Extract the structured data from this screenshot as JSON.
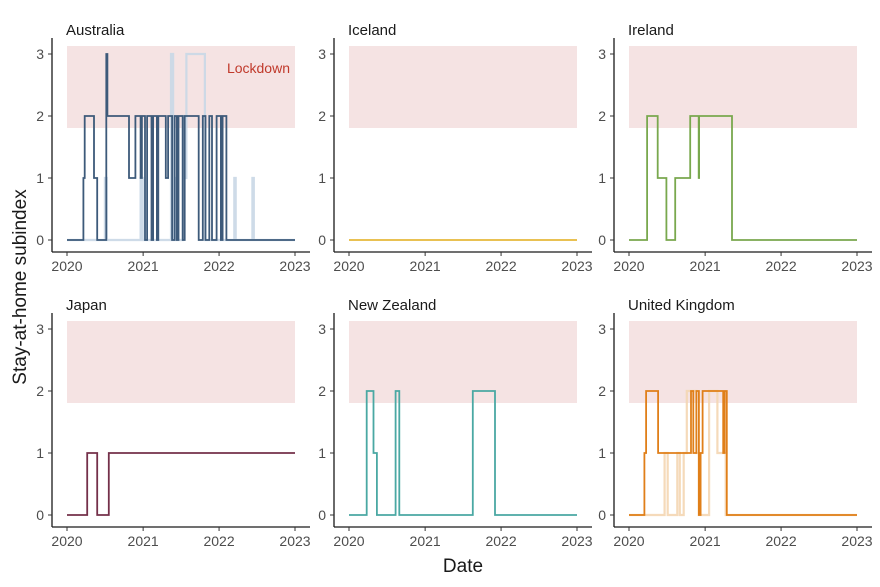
{
  "axis": {
    "xlabel": "Date",
    "ylabel": "Stay-at-home subindex"
  },
  "lockdown": {
    "label": "Lockdown",
    "threshold": 2,
    "label_color": "#c0392b",
    "band_color": "#f5e3e3"
  },
  "chart_data": {
    "type": "line",
    "layout": "facet-grid 2x3",
    "xlim": [
      "2020-01-01",
      "2023-01-01"
    ],
    "xticks": [
      "2020",
      "2021",
      "2022",
      "2023"
    ],
    "ylim": [
      0,
      3
    ],
    "yticks": [
      "0",
      "1",
      "2",
      "3"
    ],
    "grid": false,
    "xlabel": "Date",
    "ylabel": "Stay-at-home subindex",
    "annotation": "Lockdown",
    "panels": [
      {
        "title": "Australia",
        "color": "#3d5a7a",
        "series": [
          {
            "role": "faint",
            "color": "#c9d7e6",
            "steps": [
              [
                "2020-01-01",
                0
              ],
              [
                "2020-07-01",
                1
              ],
              [
                "2020-07-10",
                0
              ],
              [
                "2020-12-20",
                1
              ],
              [
                "2020-12-30",
                0
              ],
              [
                "2021-05-15",
                3
              ],
              [
                "2021-05-25",
                0
              ],
              [
                "2021-06-05",
                1
              ],
              [
                "2021-06-15",
                0
              ],
              [
                "2021-07-10",
                2
              ],
              [
                "2021-07-20",
                1
              ],
              [
                "2021-07-28",
                3
              ],
              [
                "2021-10-25",
                0
              ],
              [
                "2022-03-15",
                1
              ],
              [
                "2022-03-22",
                0
              ],
              [
                "2022-06-10",
                1
              ],
              [
                "2022-06-17",
                0
              ],
              [
                "2023-01-01",
                0
              ]
            ]
          },
          {
            "role": "main",
            "color": "#3d5a7a",
            "steps": [
              [
                "2020-01-01",
                0
              ],
              [
                "2020-03-20",
                1
              ],
              [
                "2020-03-26",
                2
              ],
              [
                "2020-05-10",
                1
              ],
              [
                "2020-05-25",
                0
              ],
              [
                "2020-07-08",
                3
              ],
              [
                "2020-07-13",
                2
              ],
              [
                "2020-10-25",
                1
              ],
              [
                "2020-11-25",
                2
              ],
              [
                "2020-12-20",
                1
              ],
              [
                "2020-12-26",
                2
              ],
              [
                "2021-01-10",
                0
              ],
              [
                "2021-01-20",
                2
              ],
              [
                "2021-02-10",
                0
              ],
              [
                "2021-02-18",
                2
              ],
              [
                "2021-03-08",
                0
              ],
              [
                "2021-03-15",
                2
              ],
              [
                "2021-04-20",
                1
              ],
              [
                "2021-05-01",
                2
              ],
              [
                "2021-05-20",
                0
              ],
              [
                "2021-06-01",
                2
              ],
              [
                "2021-06-12",
                0
              ],
              [
                "2021-06-20",
                2
              ],
              [
                "2021-07-10",
                0
              ],
              [
                "2021-07-20",
                2
              ],
              [
                "2021-09-25",
                0
              ],
              [
                "2021-10-15",
                2
              ],
              [
                "2021-10-28",
                0
              ],
              [
                "2021-11-15",
                2
              ],
              [
                "2021-11-28",
                0
              ],
              [
                "2021-12-20",
                2
              ],
              [
                "2022-01-10",
                0
              ],
              [
                "2022-01-18",
                2
              ],
              [
                "2022-02-05",
                0
              ],
              [
                "2023-01-01",
                0
              ]
            ]
          }
        ]
      },
      {
        "title": "Iceland",
        "color": "#e6b83a",
        "series": [
          {
            "role": "main",
            "color": "#e6b83a",
            "steps": [
              [
                "2020-01-01",
                0
              ],
              [
                "2023-01-01",
                0
              ]
            ]
          }
        ]
      },
      {
        "title": "Ireland",
        "color": "#79a84e",
        "series": [
          {
            "role": "main",
            "color": "#79a84e",
            "steps": [
              [
                "2020-01-01",
                0
              ],
              [
                "2020-03-28",
                2
              ],
              [
                "2020-05-18",
                1
              ],
              [
                "2020-06-29",
                0
              ],
              [
                "2020-08-10",
                1
              ],
              [
                "2020-10-21",
                2
              ],
              [
                "2020-12-01",
                1
              ],
              [
                "2020-12-03",
                2
              ],
              [
                "2021-05-10",
                0
              ],
              [
                "2023-01-01",
                0
              ]
            ]
          }
        ]
      },
      {
        "title": "Japan",
        "color": "#74304a",
        "series": [
          {
            "role": "main",
            "color": "#74304a",
            "steps": [
              [
                "2020-01-01",
                0
              ],
              [
                "2020-04-07",
                1
              ],
              [
                "2020-05-25",
                0
              ],
              [
                "2020-07-20",
                1
              ],
              [
                "2023-01-01",
                1
              ]
            ]
          }
        ]
      },
      {
        "title": "New Zealand",
        "color": "#4aa8a3",
        "series": [
          {
            "role": "main",
            "color": "#4aa8a3",
            "steps": [
              [
                "2020-01-01",
                0
              ],
              [
                "2020-03-26",
                2
              ],
              [
                "2020-04-28",
                1
              ],
              [
                "2020-05-14",
                0
              ],
              [
                "2020-08-12",
                2
              ],
              [
                "2020-08-30",
                0
              ],
              [
                "2021-08-18",
                2
              ],
              [
                "2021-12-03",
                0
              ],
              [
                "2023-01-01",
                0
              ]
            ]
          }
        ]
      },
      {
        "title": "United Kingdom",
        "color": "#e07f19",
        "series": [
          {
            "role": "faint",
            "color": "#f4d6b3",
            "steps": [
              [
                "2020-01-01",
                0
              ],
              [
                "2020-06-20",
                1
              ],
              [
                "2020-07-05",
                0
              ],
              [
                "2020-08-20",
                1
              ],
              [
                "2020-09-01",
                0
              ],
              [
                "2020-09-20",
                1
              ],
              [
                "2020-10-05",
                2
              ],
              [
                "2020-11-20",
                1
              ],
              [
                "2020-12-01",
                0
              ],
              [
                "2021-01-20",
                2
              ],
              [
                "2021-03-01",
                1
              ],
              [
                "2021-04-10",
                0
              ],
              [
                "2023-01-01",
                0
              ]
            ]
          },
          {
            "role": "main",
            "color": "#e07f19",
            "steps": [
              [
                "2020-01-01",
                0
              ],
              [
                "2020-03-15",
                1
              ],
              [
                "2020-03-23",
                2
              ],
              [
                "2020-05-20",
                1
              ],
              [
                "2020-10-25",
                2
              ],
              [
                "2020-11-05",
                1
              ],
              [
                "2020-11-20",
                2
              ],
              [
                "2020-12-02",
                0
              ],
              [
                "2020-12-10",
                1
              ],
              [
                "2020-12-20",
                2
              ],
              [
                "2021-03-29",
                1
              ],
              [
                "2021-04-05",
                2
              ],
              [
                "2021-04-15",
                0
              ],
              [
                "2023-01-01",
                0
              ]
            ]
          }
        ]
      }
    ]
  }
}
